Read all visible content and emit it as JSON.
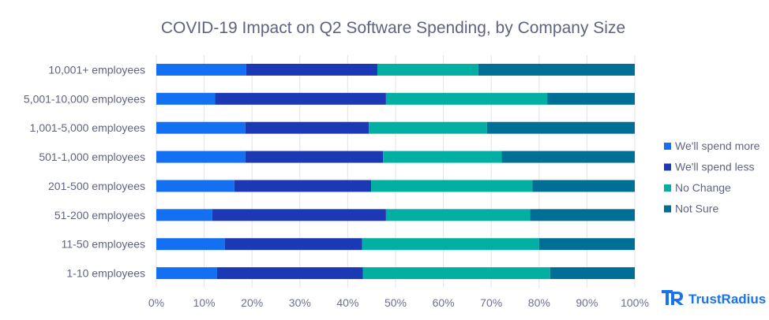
{
  "chart_data": {
    "type": "bar",
    "orientation": "horizontal",
    "stacked": "percent",
    "title": "COVID-19 Impact on Q2 Software Spending, by Company Size",
    "xlabel": "",
    "ylabel": "",
    "xlim": [
      0,
      100
    ],
    "grid": true,
    "legend_position": "right",
    "categories": [
      "10,001+ employees",
      "5,001-10,000 employees",
      "1,001-5,000 employees",
      "501-1,000 employees",
      "201-500 employees",
      "51-200 employees",
      "11-50 employees",
      "1-10 employees"
    ],
    "x_ticks": [
      "0%",
      "10%",
      "20%",
      "30%",
      "40%",
      "50%",
      "60%",
      "70%",
      "80%",
      "90%",
      "100%"
    ],
    "series": [
      {
        "name": "We'll spend more",
        "color": "#1370f2",
        "values": [
          18.8,
          12.3,
          18.6,
          18.6,
          16.3,
          11.7,
          14.3,
          12.7
        ]
      },
      {
        "name": "We'll spend less",
        "color": "#1c39b5",
        "values": [
          27.4,
          35.7,
          25.8,
          28.8,
          28.6,
          36.3,
          28.7,
          30.5
        ]
      },
      {
        "name": "No Change",
        "color": "#01b0a3",
        "values": [
          21.1,
          33.7,
          24.7,
          24.8,
          33.7,
          30.1,
          37.0,
          39.1
        ]
      },
      {
        "name": "Not Sure",
        "color": "#006f95",
        "values": [
          32.7,
          18.3,
          30.9,
          27.8,
          21.4,
          21.9,
          20.0,
          17.7
        ]
      }
    ]
  },
  "branding": {
    "logo_text": "TrustRadius",
    "logo_icon": "trustradius-tr-icon",
    "logo_color": "#1a73e8"
  }
}
